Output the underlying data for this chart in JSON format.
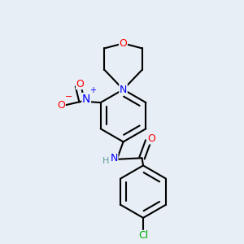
{
  "background_color": "#e8eef5",
  "bond_color": "#000000",
  "atom_colors": {
    "N": "#0000ff",
    "O": "#ff0000",
    "Cl": "#00aa00",
    "H": "#5f9ea0"
  },
  "bond_width": 1.5,
  "figsize": [
    3.0,
    3.0
  ],
  "dpi": 100
}
